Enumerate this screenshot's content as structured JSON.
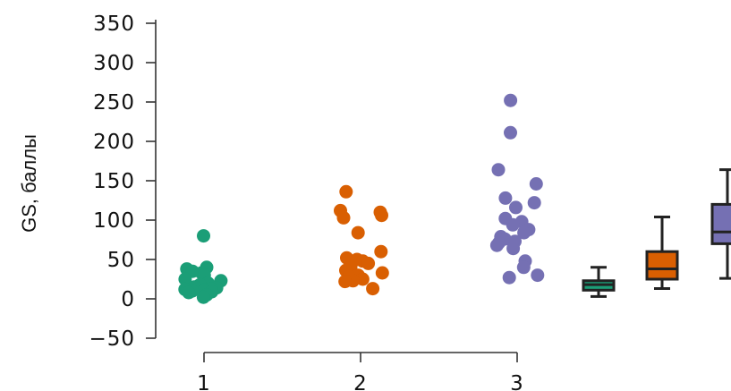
{
  "chart_data": {
    "type": "scatter",
    "ylabel": "GS, баллы",
    "ylim": [
      -50,
      350
    ],
    "yticks": [
      -50,
      0,
      50,
      100,
      150,
      200,
      250,
      300,
      350
    ],
    "xticks": [
      "1",
      "2",
      "3"
    ],
    "grid": false,
    "legend": "none",
    "series": [
      {
        "category": "1",
        "color": "#1b9e77",
        "values": [
          80,
          40,
          38,
          35,
          33,
          30,
          25,
          23,
          20,
          18,
          15,
          14,
          13,
          12,
          11,
          10,
          9,
          8,
          5,
          2
        ]
      },
      {
        "category": "2",
        "color": "#d95f02",
        "values": [
          136,
          112,
          110,
          106,
          103,
          84,
          60,
          52,
          50,
          48,
          45,
          40,
          36,
          33,
          30,
          28,
          25,
          23,
          22,
          13
        ]
      },
      {
        "category": "3",
        "color": "#7570b3",
        "values": [
          252,
          211,
          164,
          146,
          128,
          122,
          116,
          102,
          98,
          94,
          88,
          84,
          79,
          76,
          73,
          71,
          68,
          64,
          48,
          40,
          30,
          27
        ]
      }
    ],
    "boxplots": [
      {
        "category": "1",
        "color": "#1b9e77",
        "min": 3,
        "q1": 11,
        "median": 18,
        "q3": 23,
        "max": 40
      },
      {
        "category": "2",
        "color": "#d95f02",
        "min": 13,
        "q1": 25,
        "median": 38,
        "q3": 60,
        "max": 104
      },
      {
        "category": "3",
        "color": "#7570b3",
        "min": 26,
        "q1": 70,
        "median": 85,
        "q3": 120,
        "max": 164
      }
    ]
  }
}
